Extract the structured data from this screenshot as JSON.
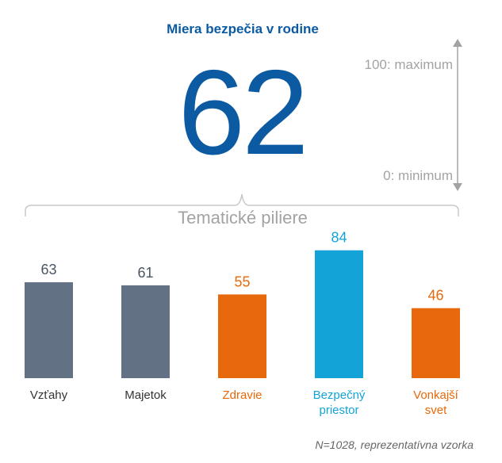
{
  "header": {
    "title": "Miera bezpečia v rodine",
    "score": "62"
  },
  "scale": {
    "max_label": "100: maximum",
    "min_label": "0: minimum"
  },
  "pillars_label": "Tematické piliere",
  "footnote": "N=1028, reprezentatívna vzorka",
  "chart_data": {
    "type": "bar",
    "categories": [
      "Vzťahy",
      "Majetok",
      "Zdravie",
      "Bezpečný priestor",
      "Vonkajší svet"
    ],
    "category_lines": [
      [
        "Vzťahy"
      ],
      [
        "Majetok"
      ],
      [
        "Zdravie"
      ],
      [
        "Bezpečný",
        "priestor"
      ],
      [
        "Vonkajší",
        "svet"
      ]
    ],
    "values": [
      63,
      61,
      55,
      84,
      46
    ],
    "value_labels": [
      "63",
      "61",
      "55",
      "84",
      "46"
    ],
    "ylim": [
      0,
      100
    ],
    "colors": [
      "#627183",
      "#627183",
      "#e8680c",
      "#14a3d6",
      "#e8680c"
    ],
    "label_colors": [
      "#4a5563",
      "#4a5563",
      "#e8680c",
      "#14a3d6",
      "#e8680c"
    ],
    "grid": false
  }
}
